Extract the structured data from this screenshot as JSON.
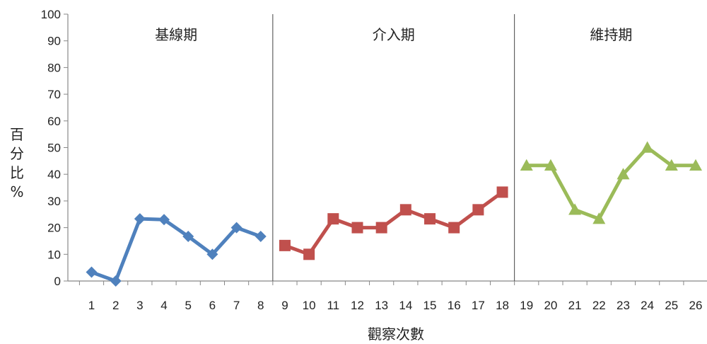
{
  "chart_data": {
    "type": "line",
    "title": "",
    "xlabel": "觀察次數",
    "ylabel": [
      "百",
      "分",
      "比",
      "%"
    ],
    "ylim": [
      0,
      100
    ],
    "yticks": [
      0,
      10,
      20,
      30,
      40,
      50,
      60,
      70,
      80,
      90,
      100
    ],
    "xlim": [
      1,
      26
    ],
    "xticks": [
      1,
      2,
      3,
      4,
      5,
      6,
      7,
      8,
      9,
      10,
      11,
      12,
      13,
      14,
      15,
      16,
      17,
      18,
      19,
      20,
      21,
      22,
      23,
      24,
      25,
      26
    ],
    "grid": false,
    "legend": "none",
    "phases": [
      {
        "label": "基線期",
        "from": 1,
        "to": 8
      },
      {
        "label": "介入期",
        "from": 9,
        "to": 18
      },
      {
        "label": "維持期",
        "from": 19,
        "to": 26
      }
    ],
    "phase_dividers": [
      8.5,
      18.5
    ],
    "series": [
      {
        "color": "#4F81BD",
        "marker": "diamond",
        "x": [
          1,
          2,
          3,
          4,
          5,
          6,
          7,
          8
        ],
        "y": [
          3.3,
          0,
          23.3,
          23,
          16.7,
          10,
          20,
          16.7
        ]
      },
      {
        "color": "#C0504D",
        "marker": "square",
        "x": [
          9,
          10,
          11,
          12,
          13,
          14,
          15,
          16,
          17,
          18
        ],
        "y": [
          13.3,
          10,
          23.3,
          20,
          20,
          26.7,
          23.3,
          20,
          26.7,
          33.3
        ]
      },
      {
        "color": "#9BBB59",
        "marker": "triangle",
        "x": [
          19,
          20,
          21,
          22,
          23,
          24,
          25,
          26
        ],
        "y": [
          43.3,
          43.3,
          26.7,
          23.3,
          40,
          50,
          43.3,
          43.3
        ]
      }
    ]
  }
}
